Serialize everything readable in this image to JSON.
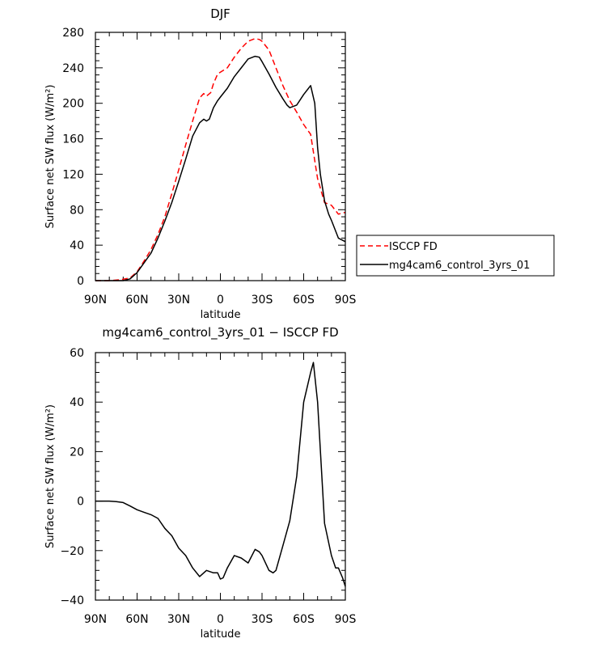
{
  "chart_data": [
    {
      "type": "line",
      "title": "DJF",
      "xlabel": "latitude",
      "ylabel": "Surface net SW flux (W/m²)",
      "xlim": [
        90,
        -90
      ],
      "ylim": [
        0,
        280
      ],
      "xticks": [
        90,
        60,
        30,
        0,
        -30,
        -60,
        -90
      ],
      "xtick_labels": [
        "90N",
        "60N",
        "30N",
        "0",
        "30S",
        "60S",
        "90S"
      ],
      "yticks": [
        0,
        40,
        80,
        120,
        160,
        200,
        240,
        280
      ],
      "ytick_labels": [
        "0",
        "40",
        "80",
        "120",
        "160",
        "200",
        "240",
        "280"
      ],
      "grid": false,
      "legend_position": "right, outside plot",
      "series": [
        {
          "name": "ISCCP FD",
          "color": "#ff0000",
          "dash": true,
          "x": [
            90,
            80,
            72,
            65,
            60,
            55,
            50,
            45,
            40,
            35,
            30,
            25,
            20,
            15,
            12,
            10,
            7,
            5,
            2,
            0,
            -5,
            -10,
            -15,
            -20,
            -25,
            -28,
            -30,
            -35,
            -40,
            -45,
            -50,
            -55,
            -60,
            -65,
            -70,
            -75,
            -80,
            -85,
            -90
          ],
          "y": [
            0,
            0,
            1,
            3,
            10,
            22,
            35,
            52,
            72,
            98,
            125,
            153,
            180,
            206,
            211,
            208,
            212,
            222,
            233,
            235,
            240,
            252,
            262,
            270,
            273,
            272,
            270,
            260,
            240,
            220,
            203,
            190,
            176,
            165,
            115,
            88,
            85,
            75,
            77
          ]
        },
        {
          "name": "mg4cam6_control_3yrs_01",
          "color": "#000000",
          "dash": false,
          "x": [
            90,
            80,
            70,
            65,
            60,
            55,
            50,
            45,
            40,
            35,
            30,
            25,
            20,
            15,
            12,
            10,
            8,
            5,
            2,
            0,
            -5,
            -10,
            -15,
            -20,
            -25,
            -28,
            -30,
            -35,
            -40,
            -45,
            -48,
            -50,
            -55,
            -60,
            -65,
            -68,
            -70,
            -72,
            -75,
            -78,
            -80,
            -85,
            -90
          ],
          "y": [
            0,
            0,
            0,
            2,
            9,
            20,
            31,
            48,
            67,
            88,
            112,
            137,
            163,
            178,
            182,
            180,
            182,
            195,
            203,
            207,
            217,
            230,
            240,
            250,
            253,
            252,
            247,
            233,
            218,
            205,
            198,
            195,
            198,
            210,
            220,
            200,
            150,
            120,
            90,
            75,
            68,
            48,
            44
          ]
        }
      ]
    },
    {
      "type": "line",
      "title": "mg4cam6_control_3yrs_01 − ISCCP FD",
      "xlabel": "latitude",
      "ylabel": "Surface net SW flux (W/m²)",
      "xlim": [
        90,
        -90
      ],
      "ylim": [
        -40,
        60
      ],
      "xticks": [
        90,
        60,
        30,
        0,
        -30,
        -60,
        -90
      ],
      "xtick_labels": [
        "90N",
        "60N",
        "30N",
        "0",
        "30S",
        "60S",
        "90S"
      ],
      "yticks": [
        -40,
        -20,
        0,
        20,
        40,
        60
      ],
      "ytick_labels": [
        "−40",
        "−20",
        "0",
        "20",
        "40",
        "60"
      ],
      "grid": false,
      "series": [
        {
          "color": "#000000",
          "dash": false,
          "x": [
            90,
            80,
            75,
            70,
            65,
            60,
            55,
            50,
            45,
            40,
            35,
            30,
            25,
            20,
            15,
            10,
            5,
            2,
            0,
            -2,
            -5,
            -10,
            -15,
            -20,
            -25,
            -28,
            -30,
            -35,
            -38,
            -40,
            -45,
            -50,
            -55,
            -60,
            -65,
            -67,
            -70,
            -75,
            -80,
            -83,
            -85,
            -88,
            -90
          ],
          "y": [
            0,
            0,
            -0.2,
            -0.6,
            -2,
            -3.5,
            -4.5,
            -5.5,
            -7,
            -11,
            -14,
            -19,
            -22,
            -27,
            -30.5,
            -28,
            -29,
            -29,
            -31.5,
            -31,
            -27,
            -22,
            -23,
            -25,
            -19.5,
            -20.5,
            -22,
            -28,
            -29,
            -28,
            -18,
            -8,
            10,
            40,
            52,
            56,
            40,
            -9,
            -22,
            -27,
            -27,
            -31,
            -34.5
          ]
        }
      ]
    }
  ]
}
